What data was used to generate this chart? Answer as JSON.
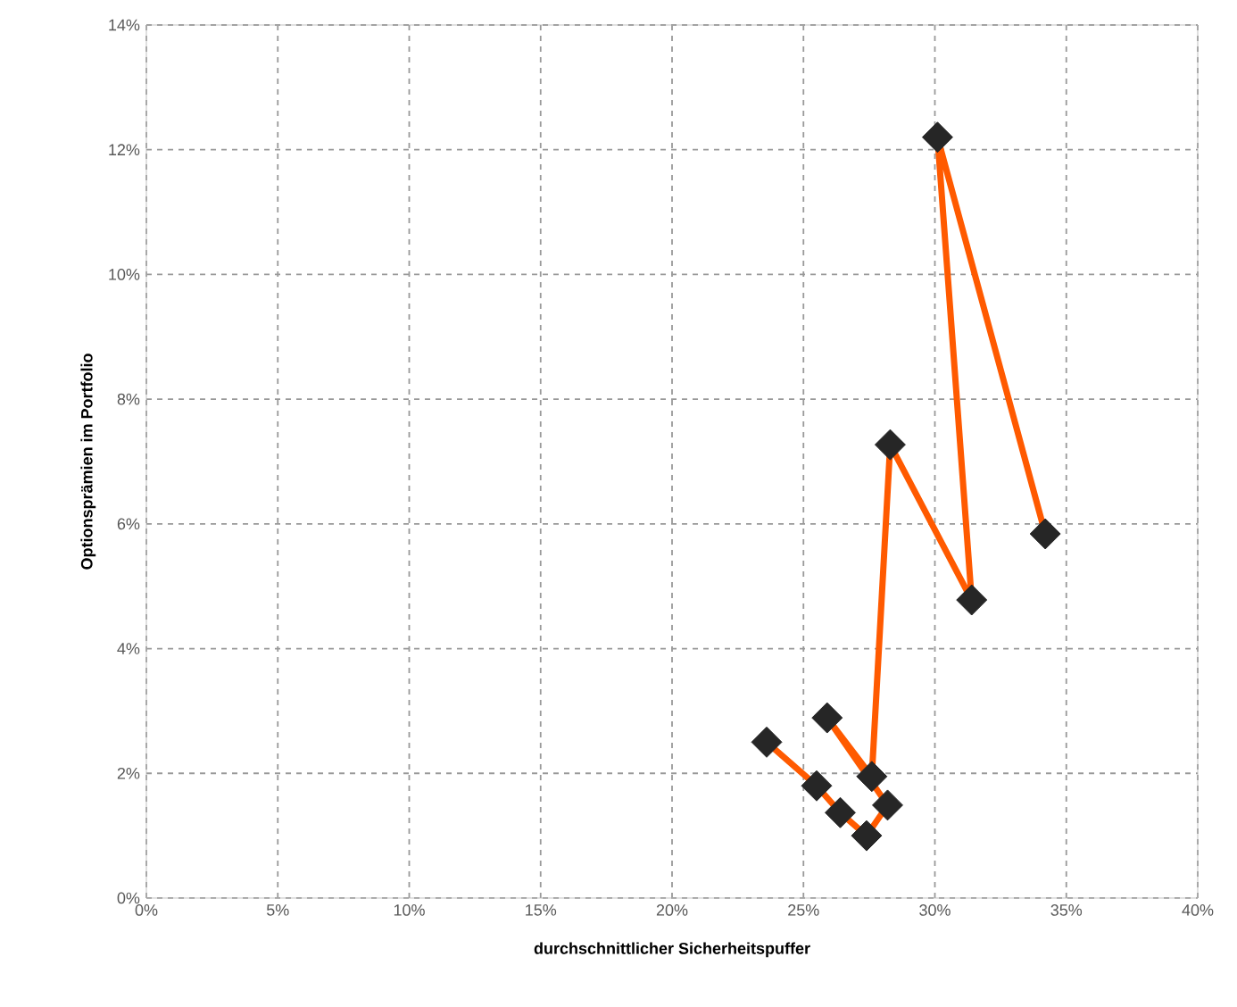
{
  "chart_data": {
    "type": "line",
    "xlabel": "durchschnittlicher Sicherheitspuffer",
    "ylabel": "Optionsprämien im Portfolio",
    "xlim": [
      0,
      0.4
    ],
    "ylim": [
      0,
      0.14
    ],
    "xticks": [
      {
        "value": 0,
        "label": "0%"
      },
      {
        "value": 0.05,
        "label": "5%"
      },
      {
        "value": 0.1,
        "label": "10%"
      },
      {
        "value": 0.15,
        "label": "15%"
      },
      {
        "value": 0.2,
        "label": "20%"
      },
      {
        "value": 0.25,
        "label": "25%"
      },
      {
        "value": 0.3,
        "label": "30%"
      },
      {
        "value": 0.35,
        "label": "35%"
      },
      {
        "value": 0.4,
        "label": "40%"
      }
    ],
    "yticks": [
      {
        "value": 0,
        "label": "0%"
      },
      {
        "value": 0.02,
        "label": "2%"
      },
      {
        "value": 0.04,
        "label": "4%"
      },
      {
        "value": 0.06,
        "label": "6%"
      },
      {
        "value": 0.08,
        "label": "8%"
      },
      {
        "value": 0.1,
        "label": "10%"
      },
      {
        "value": 0.12,
        "label": "12%"
      },
      {
        "value": 0.14,
        "label": "14%"
      }
    ],
    "grid": true,
    "marker": "diamond",
    "line_style": "solid",
    "series": [
      {
        "color": "#ff5a00",
        "x": [
          0.236,
          0.255,
          0.264,
          0.274,
          0.282,
          0.259,
          0.276,
          0.283,
          0.314,
          0.301,
          0.342
        ],
        "values": [
          0.025,
          0.018,
          0.0137,
          0.01,
          0.0149,
          0.0289,
          0.0195,
          0.0727,
          0.0478,
          0.122,
          0.0584
        ]
      }
    ]
  }
}
